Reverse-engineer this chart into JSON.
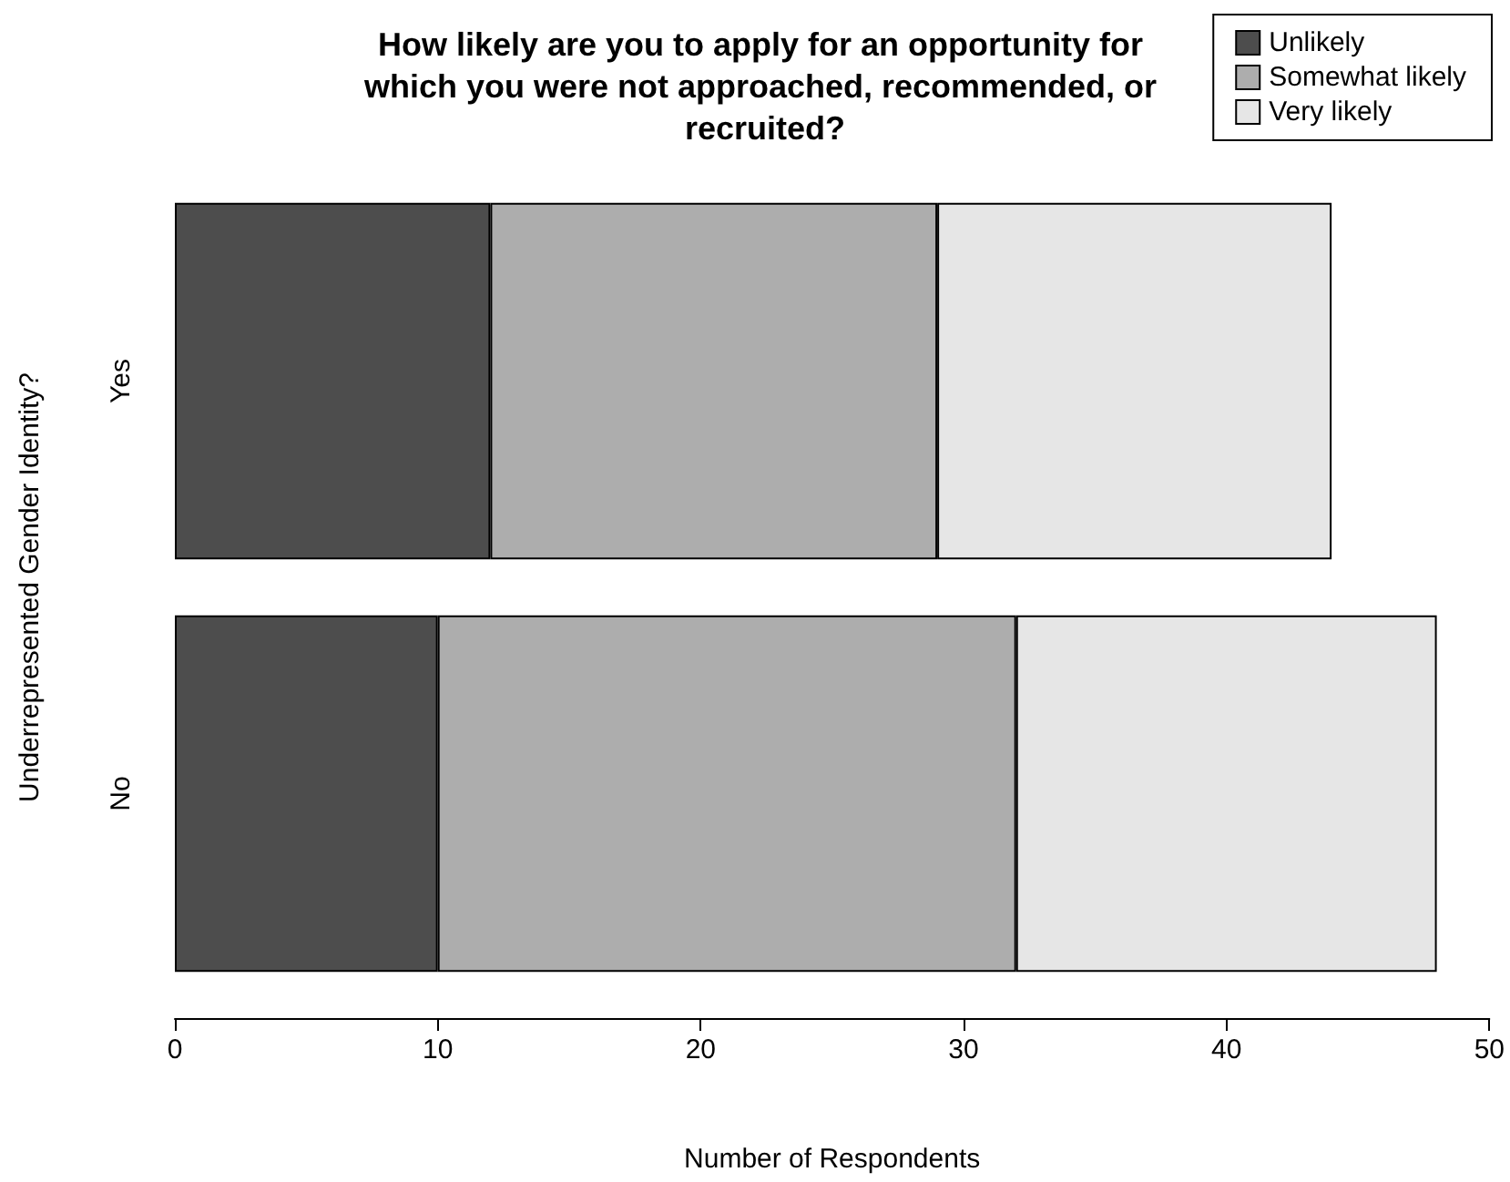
{
  "chart_data": {
    "type": "bar",
    "title": "How likely are you to apply for an opportunity for which you were not approached, recommended, or recruited?",
    "xlabel": "Number of Respondents",
    "ylabel": "Underrepresented Gender Identity?",
    "categories": [
      "Yes",
      "No"
    ],
    "orientation": "horizontal",
    "stacked": true,
    "series": [
      {
        "name": "Unlikely",
        "color": "#4d4d4d",
        "values": [
          12,
          10
        ]
      },
      {
        "name": "Somewhat likely",
        "color": "#adadad",
        "values": [
          17,
          22
        ]
      },
      {
        "name": "Very likely",
        "color": "#e6e6e6",
        "values": [
          15,
          16
        ]
      }
    ],
    "xlim": [
      0,
      50
    ],
    "xticks": [
      0,
      10,
      20,
      30,
      40,
      50
    ],
    "grid": false,
    "legend": "top right"
  }
}
